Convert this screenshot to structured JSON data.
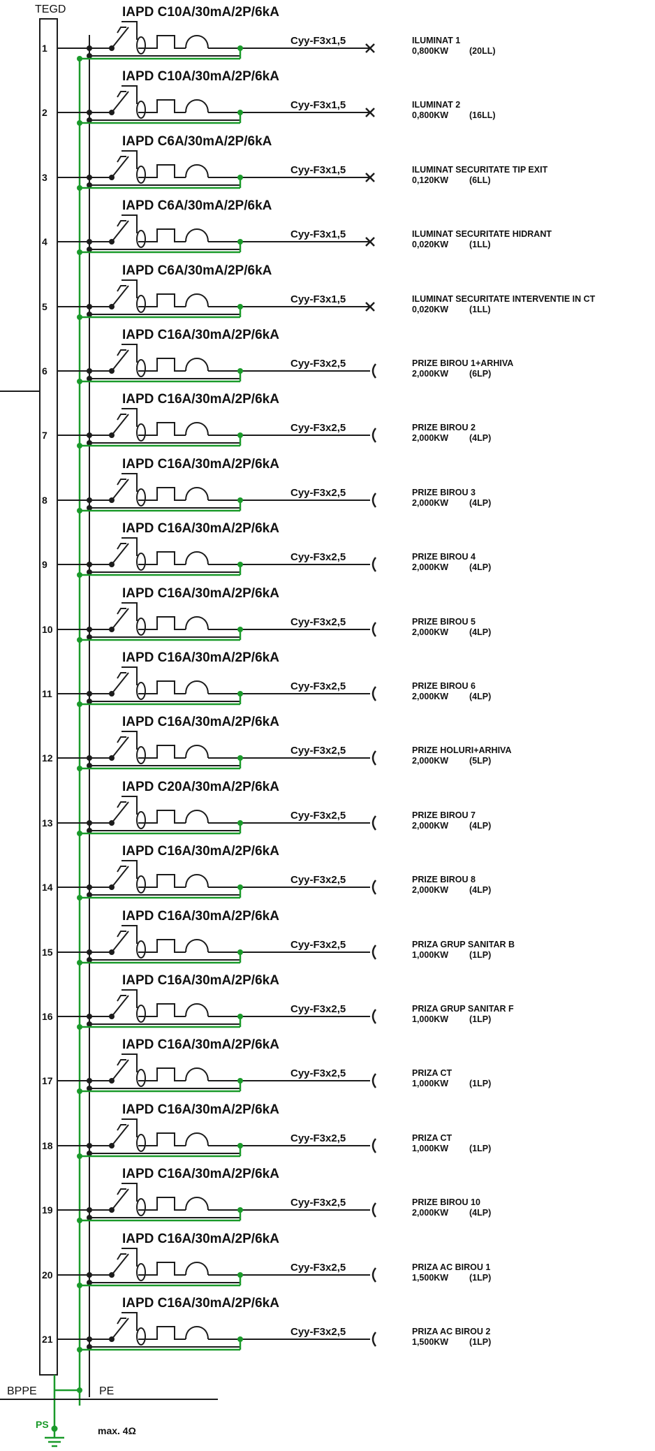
{
  "panel": {
    "title": "TEGD",
    "ground_bar": "BPPE",
    "pe_bar": "PE",
    "ground_symbol": "PS",
    "resistance": "max. 4Ω"
  },
  "colors": {
    "conductor": "#1c1c1c",
    "protective_earth": "#1a9a2a"
  },
  "icons": {
    "breaker": "rcbo-breaker-icon",
    "lighting": "lamp-cross-icon",
    "socket": "socket-icon",
    "ground": "ground-icon"
  },
  "circuits": [
    {
      "number": "1",
      "breaker": "IAPD C10A/30mA/2P/6kA",
      "cable": "Cyy-F3x1,5",
      "load_name": "ILUMINAT 1",
      "load_power": "0,800KW",
      "load_units": "(20LL)",
      "end": "lamp"
    },
    {
      "number": "2",
      "breaker": "IAPD C10A/30mA/2P/6kA",
      "cable": "Cyy-F3x1,5",
      "load_name": "ILUMINAT 2",
      "load_power": "0,800KW",
      "load_units": "(16LL)",
      "end": "lamp"
    },
    {
      "number": "3",
      "breaker": "IAPD C6A/30mA/2P/6kA",
      "cable": "Cyy-F3x1,5",
      "load_name": "ILUMINAT SECURITATE TIP EXIT",
      "load_power": "0,120KW",
      "load_units": "(6LL)",
      "end": "lamp"
    },
    {
      "number": "4",
      "breaker": "IAPD C6A/30mA/2P/6kA",
      "cable": "Cyy-F3x1,5",
      "load_name": "ILUMINAT SECURITATE HIDRANT",
      "load_power": "0,020KW",
      "load_units": "(1LL)",
      "end": "lamp"
    },
    {
      "number": "5",
      "breaker": "IAPD C6A/30mA/2P/6kA",
      "cable": "Cyy-F3x1,5",
      "load_name": "ILUMINAT SECURITATE INTERVENTIE IN CT",
      "load_power": "0,020KW",
      "load_units": "(1LL)",
      "end": "lamp"
    },
    {
      "number": "6",
      "breaker": "IAPD C16A/30mA/2P/6kA",
      "cable": "Cyy-F3x2,5",
      "load_name": "PRIZE BIROU 1+ARHIVA",
      "load_power": "2,000KW",
      "load_units": "(6LP)",
      "end": "socket"
    },
    {
      "number": "7",
      "breaker": "IAPD C16A/30mA/2P/6kA",
      "cable": "Cyy-F3x2,5",
      "load_name": "PRIZE BIROU 2",
      "load_power": "2,000KW",
      "load_units": "(4LP)",
      "end": "socket"
    },
    {
      "number": "8",
      "breaker": "IAPD C16A/30mA/2P/6kA",
      "cable": "Cyy-F3x2,5",
      "load_name": "PRIZE BIROU 3",
      "load_power": "2,000KW",
      "load_units": "(4LP)",
      "end": "socket"
    },
    {
      "number": "9",
      "breaker": "IAPD C16A/30mA/2P/6kA",
      "cable": "Cyy-F3x2,5",
      "load_name": "PRIZE BIROU 4",
      "load_power": "2,000KW",
      "load_units": "(4LP)",
      "end": "socket"
    },
    {
      "number": "10",
      "breaker": "IAPD C16A/30mA/2P/6kA",
      "cable": "Cyy-F3x2,5",
      "load_name": "PRIZE BIROU 5",
      "load_power": "2,000KW",
      "load_units": "(4LP)",
      "end": "socket"
    },
    {
      "number": "11",
      "breaker": "IAPD C16A/30mA/2P/6kA",
      "cable": "Cyy-F3x2,5",
      "load_name": "PRIZE BIROU 6",
      "load_power": "2,000KW",
      "load_units": "(4LP)",
      "end": "socket"
    },
    {
      "number": "12",
      "breaker": "IAPD C16A/30mA/2P/6kA",
      "cable": "Cyy-F3x2,5",
      "load_name": "PRIZE HOLURI+ARHIVA",
      "load_power": "2,000KW",
      "load_units": "(5LP)",
      "end": "socket"
    },
    {
      "number": "13",
      "breaker": "IAPD C20A/30mA/2P/6kA",
      "cable": "Cyy-F3x2,5",
      "load_name": "PRIZE BIROU 7",
      "load_power": "2,000KW",
      "load_units": "(4LP)",
      "end": "socket"
    },
    {
      "number": "14",
      "breaker": "IAPD C16A/30mA/2P/6kA",
      "cable": "Cyy-F3x2,5",
      "load_name": "PRIZE BIROU 8",
      "load_power": "2,000KW",
      "load_units": "(4LP)",
      "end": "socket"
    },
    {
      "number": "15",
      "breaker": "IAPD C16A/30mA/2P/6kA",
      "cable": "Cyy-F3x2,5",
      "load_name": "PRIZA GRUP SANITAR B",
      "load_power": "1,000KW",
      "load_units": "(1LP)",
      "end": "socket"
    },
    {
      "number": "16",
      "breaker": "IAPD C16A/30mA/2P/6kA",
      "cable": "Cyy-F3x2,5",
      "load_name": "PRIZA GRUP SANITAR F",
      "load_power": "1,000KW",
      "load_units": "(1LP)",
      "end": "socket"
    },
    {
      "number": "17",
      "breaker": "IAPD C16A/30mA/2P/6kA",
      "cable": "Cyy-F3x2,5",
      "load_name": "PRIZA CT",
      "load_power": "1,000KW",
      "load_units": "(1LP)",
      "end": "socket"
    },
    {
      "number": "18",
      "breaker": "IAPD C16A/30mA/2P/6kA",
      "cable": "Cyy-F3x2,5",
      "load_name": "PRIZA CT",
      "load_power": "1,000KW",
      "load_units": "(1LP)",
      "end": "socket"
    },
    {
      "number": "19",
      "breaker": "IAPD C16A/30mA/2P/6kA",
      "cable": "Cyy-F3x2,5",
      "load_name": "PRIZE BIROU 10",
      "load_power": "2,000KW",
      "load_units": "(4LP)",
      "end": "socket"
    },
    {
      "number": "20",
      "breaker": "IAPD C16A/30mA/2P/6kA",
      "cable": "Cyy-F3x2,5",
      "load_name": "PRIZA AC BIROU 1",
      "load_power": "1,500KW",
      "load_units": "(1LP)",
      "end": "socket"
    },
    {
      "number": "21",
      "breaker": "IAPD C16A/30mA/2P/6kA",
      "cable": "Cyy-F3x2,5",
      "load_name": "PRIZA AC BIROU 2",
      "load_power": "1,500KW",
      "load_units": "(1LP)",
      "end": "socket"
    }
  ]
}
